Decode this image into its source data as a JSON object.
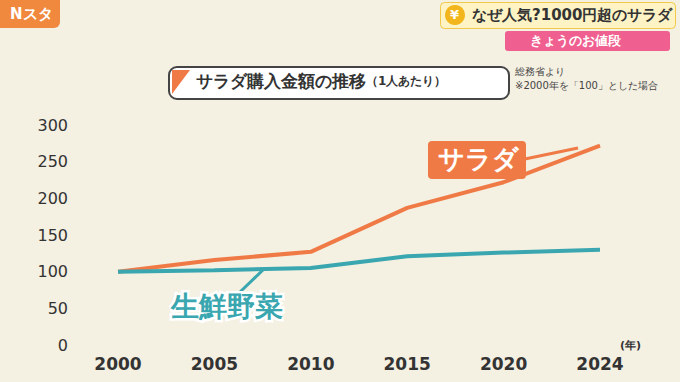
{
  "header": {
    "logo": "Nスタ",
    "icon": "¥",
    "headline": "なぜ人気?1000円超のサラダ",
    "tag": "きょうのお値段"
  },
  "chart_data": {
    "type": "line",
    "title": "サラダ購入金額の推移",
    "subtitle": "（1人あたり）",
    "annotations": [
      "総務省より",
      "※2000年を「100」とした場合"
    ],
    "xlabel": "(年)",
    "categories": [
      "2000",
      "2005",
      "2010",
      "2015",
      "2020",
      "2024"
    ],
    "series": [
      {
        "name": "サラダ",
        "color": "#f07a46",
        "values": [
          100,
          116,
          127,
          187,
          222,
          272
        ]
      },
      {
        "name": "生鮮野菜",
        "color": "#3aa7b0",
        "values": [
          100,
          102,
          105,
          121,
          126,
          130
        ]
      }
    ],
    "ylim": [
      0,
      300
    ],
    "yticks": [
      0,
      50,
      100,
      150,
      200,
      250,
      300
    ],
    "grid": false
  }
}
